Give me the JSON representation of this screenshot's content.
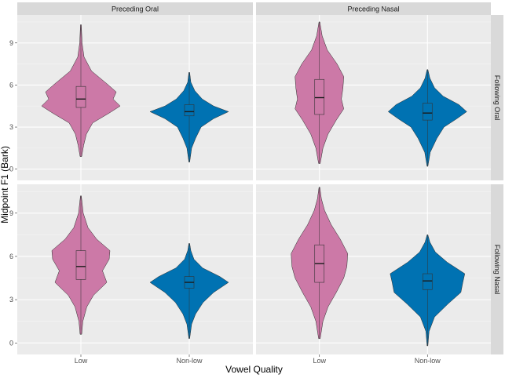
{
  "chart_data": {
    "type": "violin",
    "xlabel": "Vowel Quality",
    "ylabel": "Midpoint F1 (Bark)",
    "ylim": [
      -0.8,
      11.0
    ],
    "yticks": [
      0,
      3,
      6,
      9
    ],
    "categories": [
      "Low",
      "Non-low"
    ],
    "facet_columns": [
      "Preceding Oral",
      "Preceding Nasal"
    ],
    "facet_rows": [
      "Following Oral",
      "Following Nasal"
    ],
    "colors": {
      "Low": "#CC79A7",
      "Non-low": "#0072B2"
    },
    "panels": [
      {
        "column": "Preceding Oral",
        "row": "Following Oral",
        "violins": [
          {
            "category": "Low",
            "min": 0.9,
            "q1": 4.4,
            "median": 5.0,
            "q3": 5.9,
            "max": 10.3,
            "profile": [
              [
                0.9,
                0.02
              ],
              [
                1.7,
                0.07
              ],
              [
                2.5,
                0.14
              ],
              [
                3.3,
                0.3
              ],
              [
                4.0,
                0.72
              ],
              [
                4.5,
                1.0
              ],
              [
                5.0,
                0.82
              ],
              [
                5.5,
                0.9
              ],
              [
                6.0,
                0.7
              ],
              [
                7.0,
                0.27
              ],
              [
                8.0,
                0.08
              ],
              [
                9.0,
                0.03
              ],
              [
                10.3,
                0.01
              ]
            ]
          },
          {
            "category": "Non-low",
            "min": 0.5,
            "q1": 3.8,
            "median": 4.1,
            "q3": 4.6,
            "max": 6.9,
            "profile": [
              [
                0.5,
                0.01
              ],
              [
                1.5,
                0.06
              ],
              [
                2.2,
                0.16
              ],
              [
                3.0,
                0.3
              ],
              [
                3.6,
                0.62
              ],
              [
                4.1,
                1.0
              ],
              [
                4.5,
                0.62
              ],
              [
                5.0,
                0.33
              ],
              [
                5.6,
                0.14
              ],
              [
                6.2,
                0.04
              ],
              [
                6.9,
                0.01
              ]
            ]
          }
        ]
      },
      {
        "column": "Preceding Nasal",
        "row": "Following Oral",
        "violins": [
          {
            "category": "Low",
            "min": 0.4,
            "q1": 3.9,
            "median": 5.1,
            "q3": 6.4,
            "max": 10.5,
            "profile": [
              [
                0.4,
                0.02
              ],
              [
                1.5,
                0.09
              ],
              [
                2.5,
                0.22
              ],
              [
                3.5,
                0.43
              ],
              [
                4.3,
                0.62
              ],
              [
                5.0,
                0.56
              ],
              [
                5.8,
                0.6
              ],
              [
                6.6,
                0.62
              ],
              [
                7.5,
                0.45
              ],
              [
                8.5,
                0.2
              ],
              [
                9.5,
                0.07
              ],
              [
                10.5,
                0.01
              ]
            ]
          },
          {
            "category": "Non-low",
            "min": 0.2,
            "q1": 3.5,
            "median": 4.0,
            "q3": 4.7,
            "max": 7.1,
            "profile": [
              [
                0.2,
                0.01
              ],
              [
                1.2,
                0.07
              ],
              [
                2.2,
                0.24
              ],
              [
                3.0,
                0.42
              ],
              [
                3.6,
                0.75
              ],
              [
                4.1,
                1.0
              ],
              [
                4.6,
                0.8
              ],
              [
                5.2,
                0.4
              ],
              [
                5.8,
                0.18
              ],
              [
                6.5,
                0.06
              ],
              [
                7.1,
                0.01
              ]
            ]
          }
        ]
      },
      {
        "column": "Preceding Oral",
        "row": "Following Nasal",
        "violins": [
          {
            "category": "Low",
            "min": 0.6,
            "q1": 4.4,
            "median": 5.3,
            "q3": 6.4,
            "max": 10.2,
            "profile": [
              [
                0.6,
                0.02
              ],
              [
                1.5,
                0.05
              ],
              [
                2.5,
                0.15
              ],
              [
                3.3,
                0.32
              ],
              [
                4.2,
                0.66
              ],
              [
                5.0,
                0.55
              ],
              [
                5.8,
                0.72
              ],
              [
                6.4,
                0.74
              ],
              [
                7.2,
                0.4
              ],
              [
                8.0,
                0.18
              ],
              [
                9.0,
                0.06
              ],
              [
                10.2,
                0.01
              ]
            ]
          },
          {
            "category": "Non-low",
            "min": 0.3,
            "q1": 3.8,
            "median": 4.2,
            "q3": 4.6,
            "max": 6.9,
            "profile": [
              [
                0.3,
                0.01
              ],
              [
                1.3,
                0.06
              ],
              [
                2.0,
                0.16
              ],
              [
                2.8,
                0.35
              ],
              [
                3.5,
                0.62
              ],
              [
                4.2,
                1.0
              ],
              [
                4.6,
                0.78
              ],
              [
                5.2,
                0.34
              ],
              [
                5.8,
                0.12
              ],
              [
                6.4,
                0.04
              ],
              [
                6.9,
                0.01
              ]
            ]
          }
        ]
      },
      {
        "column": "Preceding Nasal",
        "row": "Following Nasal",
        "violins": [
          {
            "category": "Low",
            "min": 0.3,
            "q1": 4.2,
            "median": 5.5,
            "q3": 6.8,
            "max": 10.8,
            "profile": [
              [
                0.3,
                0.02
              ],
              [
                1.5,
                0.09
              ],
              [
                2.5,
                0.22
              ],
              [
                3.5,
                0.43
              ],
              [
                4.5,
                0.62
              ],
              [
                5.3,
                0.7
              ],
              [
                6.2,
                0.72
              ],
              [
                7.2,
                0.53
              ],
              [
                8.2,
                0.3
              ],
              [
                9.2,
                0.13
              ],
              [
                10.0,
                0.05
              ],
              [
                10.8,
                0.01
              ]
            ]
          },
          {
            "category": "Non-low",
            "min": -0.2,
            "q1": 3.7,
            "median": 4.3,
            "q3": 4.8,
            "max": 7.5,
            "profile": [
              [
                -0.2,
                0.01
              ],
              [
                0.8,
                0.04
              ],
              [
                1.8,
                0.18
              ],
              [
                2.7,
                0.52
              ],
              [
                3.5,
                0.85
              ],
              [
                4.2,
                0.9
              ],
              [
                4.8,
                0.95
              ],
              [
                5.6,
                0.5
              ],
              [
                6.3,
                0.2
              ],
              [
                7.0,
                0.06
              ],
              [
                7.5,
                0.01
              ]
            ]
          }
        ]
      }
    ]
  }
}
